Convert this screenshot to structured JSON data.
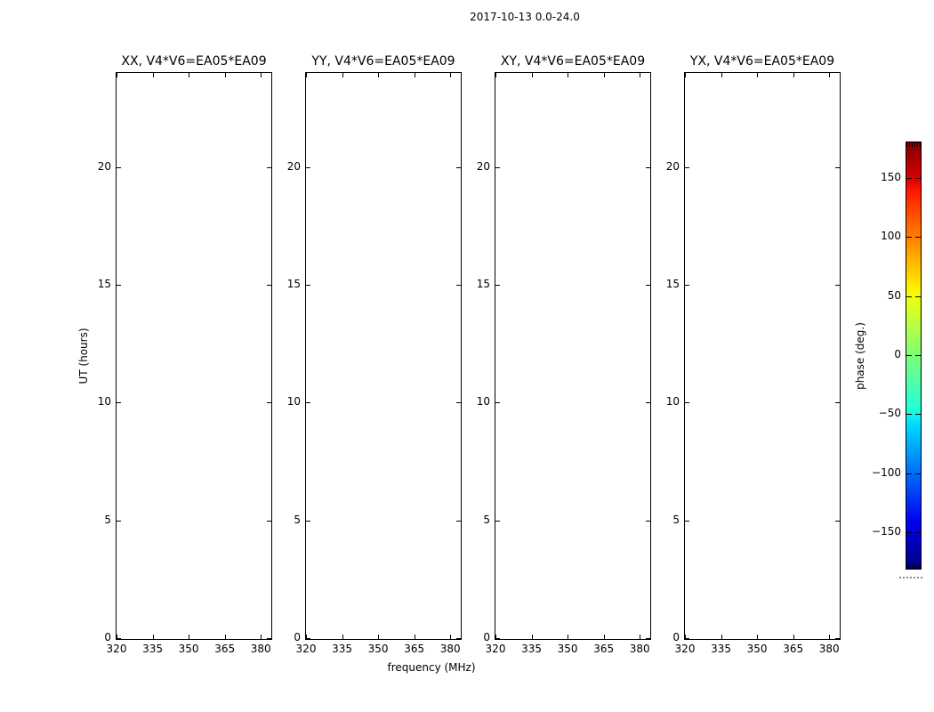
{
  "figure_title": "2017-10-13 0.0-24.0",
  "axes": {
    "xlabel": "frequency (MHz)",
    "ylabel": "UT (hours)"
  },
  "panels": [
    {
      "title": "XX, V4*V6=EA05*EA09"
    },
    {
      "title": "YY, V4*V6=EA05*EA09"
    },
    {
      "title": "XY, V4*V6=EA05*EA09"
    },
    {
      "title": "YX, V4*V6=EA05*EA09"
    }
  ],
  "x_tick_labels": [
    "320",
    "335",
    "350",
    "365",
    "380"
  ],
  "y_tick_labels": [
    "0",
    "5",
    "10",
    "15",
    "20"
  ],
  "colorbar": {
    "label": "phase (deg.)",
    "tick_labels": [
      "150",
      "100",
      "50",
      "0",
      "−50",
      "−100",
      "−150"
    ],
    "colormap": "jet",
    "top_color": "#800000",
    "bottom_color": "#000080"
  },
  "chart_data": {
    "type": "heatmap",
    "title": "2017-10-13 0.0-24.0",
    "subplots": [
      "XX, V4*V6=EA05*EA09",
      "YY, V4*V6=EA05*EA09",
      "XY, V4*V6=EA05*EA09",
      "YX, V4*V6=EA05*EA09"
    ],
    "xlabel": "frequency (MHz)",
    "ylabel": "UT (hours)",
    "xlim": [
      320,
      384
    ],
    "ylim": [
      0,
      24
    ],
    "x_ticks": [
      320,
      335,
      350,
      365,
      380
    ],
    "y_ticks": [
      0,
      5,
      10,
      15,
      20
    ],
    "colorbar_label": "phase (deg.)",
    "colorbar_ticks": [
      150,
      100,
      50,
      0,
      -50,
      -100,
      -150
    ],
    "colorbar_range": [
      -180,
      180
    ],
    "colormap": "jet",
    "values": [],
    "legend": "none",
    "grid": false
  }
}
